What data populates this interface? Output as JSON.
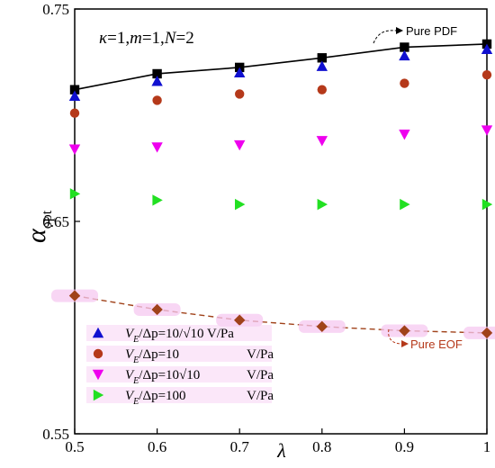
{
  "chart_data": {
    "type": "scatter",
    "title": "",
    "params_label": "κ=1,m=1,N=2",
    "xlabel": "λ",
    "ylabel": "α",
    "ylabel_sub": "opt",
    "xlim": [
      0.5,
      1.0
    ],
    "ylim": [
      0.55,
      0.75
    ],
    "x_ticks": [
      "0.5",
      "0.6",
      "0.7",
      "0.8",
      "0.9",
      "1"
    ],
    "x_tick_values": [
      0.5,
      0.6,
      0.7,
      0.8,
      0.9,
      1.0
    ],
    "y_ticks": [
      "0.55",
      "0.65",
      "0.75"
    ],
    "y_tick_values": [
      0.55,
      0.65,
      0.75
    ],
    "grid": false,
    "legend_position": "bottom-left",
    "x": [
      0.5,
      0.6,
      0.7,
      0.8,
      0.9,
      1.0
    ],
    "series": [
      {
        "name": "Pure PDF",
        "marker": "square",
        "color": "#000000",
        "line": "solid",
        "values": [
          0.712,
          0.7195,
          0.7225,
          0.727,
          0.732,
          0.7335
        ]
      },
      {
        "name": "V_E/Δp=10/√10 V/Pa",
        "label_parts": [
          "V",
          "E",
          "/Δp=10/√10 V/Pa"
        ],
        "marker": "triangle-up",
        "color": "#1010d0",
        "values": [
          0.709,
          0.716,
          0.72,
          0.723,
          0.728,
          0.731
        ]
      },
      {
        "name": "V_E/Δp=10 V/Pa",
        "label_parts": [
          "V",
          "E",
          "/Δp=10",
          "V/Pa"
        ],
        "marker": "circle",
        "color": "#b5391a",
        "values": [
          0.701,
          0.707,
          0.71,
          0.712,
          0.715,
          0.719
        ]
      },
      {
        "name": "V_E/Δp=10√10 V/Pa",
        "label_parts": [
          "V",
          "E",
          "/Δp=10√10",
          "V/Pa"
        ],
        "marker": "triangle-down",
        "color": "#ee00ee",
        "values": [
          0.684,
          0.685,
          0.686,
          0.688,
          0.691,
          0.693
        ]
      },
      {
        "name": "V_E/Δp=100 V/Pa",
        "label_parts": [
          "V",
          "E",
          "/Δp=100",
          "V/Pa"
        ],
        "marker": "triangle-right",
        "color": "#22e022",
        "values": [
          0.663,
          0.66,
          0.658,
          0.658,
          0.658,
          0.658
        ]
      },
      {
        "name": "Pure EOF",
        "marker": "diamond",
        "color": "#a0421a",
        "line": "dashed",
        "values": [
          0.615,
          0.6085,
          0.6035,
          0.6005,
          0.5985,
          0.5975
        ]
      }
    ],
    "annotations": [
      {
        "text": "Pure PDF",
        "color": "#000000"
      },
      {
        "text": "Pure EOF",
        "color": "#b5391a"
      }
    ]
  }
}
